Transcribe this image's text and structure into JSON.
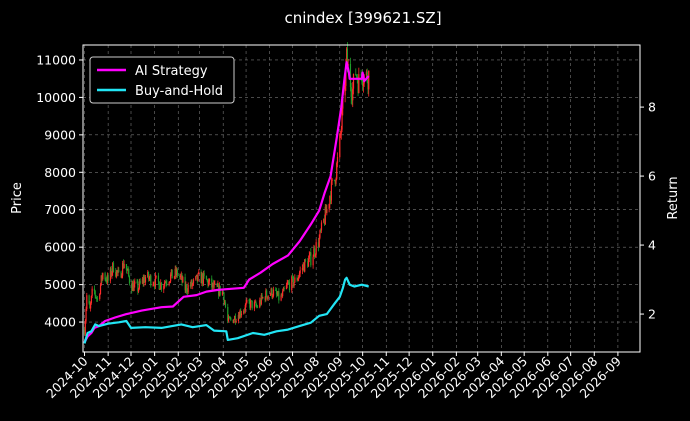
{
  "chart_data": {
    "type": "line",
    "title": "cnindex [399621.SZ]",
    "ylabel": "Price",
    "y2label": "Return",
    "ylim": [
      3200,
      11400
    ],
    "y2lim": [
      0.9,
      9.8
    ],
    "yticks": [
      4000,
      5000,
      6000,
      7000,
      8000,
      9000,
      10000,
      11000
    ],
    "y2ticks": [
      2,
      4,
      6,
      8
    ],
    "xlim": [
      "2024-09-29",
      "2026-09-30"
    ],
    "xticks": [
      "2024-10",
      "2024-11",
      "2024-12",
      "2025-01",
      "2025-02",
      "2025-03",
      "2025-04",
      "2025-05",
      "2025-06",
      "2025-07",
      "2025-08",
      "2025-09",
      "2025-10",
      "2025-11",
      "2025-12",
      "2026-01",
      "2026-02",
      "2026-03",
      "2026-04",
      "2026-05",
      "2026-06",
      "2026-07",
      "2026-08",
      "2026-09"
    ],
    "grid": true,
    "legend_position": "top-left",
    "colors": {
      "up": "#ff2a2a",
      "down": "#1f9e2a",
      "ai": "#ff00ff",
      "bh": "#22e5f5"
    },
    "price_close": [
      [
        "2024-10-01",
        3800
      ],
      [
        "2024-10-04",
        4700
      ],
      [
        "2024-10-08",
        4300
      ],
      [
        "2024-10-12",
        4900
      ],
      [
        "2024-10-18",
        4600
      ],
      [
        "2024-10-25",
        5300
      ],
      [
        "2024-11-01",
        5100
      ],
      [
        "2024-11-08",
        5500
      ],
      [
        "2024-11-15",
        5200
      ],
      [
        "2024-11-22",
        5600
      ],
      [
        "2024-12-01",
        5000
      ],
      [
        "2024-12-10",
        4900
      ],
      [
        "2024-12-20",
        5200
      ],
      [
        "2025-01-01",
        5100
      ],
      [
        "2025-01-10",
        5000
      ],
      [
        "2025-01-20",
        5200
      ],
      [
        "2025-02-01",
        5300
      ],
      [
        "2025-02-10",
        4900
      ],
      [
        "2025-02-20",
        5000
      ],
      [
        "2025-03-01",
        5200
      ],
      [
        "2025-03-10",
        5100
      ],
      [
        "2025-03-20",
        4900
      ],
      [
        "2025-04-01",
        4800
      ],
      [
        "2025-04-07",
        4000
      ],
      [
        "2025-04-15",
        4100
      ],
      [
        "2025-04-25",
        4300
      ],
      [
        "2025-05-05",
        4500
      ],
      [
        "2025-05-15",
        4400
      ],
      [
        "2025-05-25",
        4700
      ],
      [
        "2025-06-05",
        4800
      ],
      [
        "2025-06-15",
        4600
      ],
      [
        "2025-06-25",
        5000
      ],
      [
        "2025-07-05",
        5100
      ],
      [
        "2025-07-15",
        5500
      ],
      [
        "2025-07-25",
        5700
      ],
      [
        "2025-08-05",
        6200
      ],
      [
        "2025-08-10",
        6600
      ],
      [
        "2025-08-15",
        7000
      ],
      [
        "2025-08-20",
        7500
      ],
      [
        "2025-08-25",
        7800
      ],
      [
        "2025-08-30",
        8400
      ],
      [
        "2025-09-03",
        9200
      ],
      [
        "2025-09-06",
        10000
      ],
      [
        "2025-09-10",
        11000
      ],
      [
        "2025-09-14",
        10500
      ],
      [
        "2025-09-18",
        10200
      ],
      [
        "2025-09-22",
        10700
      ],
      [
        "2025-09-26",
        10400
      ],
      [
        "2025-09-30",
        10700
      ],
      [
        "2025-10-04",
        10500
      ],
      [
        "2025-10-09",
        10600
      ]
    ],
    "series": [
      {
        "name": "AI Strategy",
        "axis": "right",
        "points": [
          [
            "2024-10-01",
            1.18
          ],
          [
            "2024-10-05",
            1.35
          ],
          [
            "2024-10-10",
            1.45
          ],
          [
            "2024-10-14",
            1.6
          ],
          [
            "2024-10-20",
            1.65
          ],
          [
            "2024-10-28",
            1.8
          ],
          [
            "2024-11-10",
            1.9
          ],
          [
            "2024-11-25",
            2.0
          ],
          [
            "2024-12-15",
            2.1
          ],
          [
            "2025-01-10",
            2.2
          ],
          [
            "2025-01-25",
            2.22
          ],
          [
            "2025-02-08",
            2.5
          ],
          [
            "2025-02-25",
            2.55
          ],
          [
            "2025-03-10",
            2.65
          ],
          [
            "2025-03-25",
            2.7
          ],
          [
            "2025-04-05",
            2.72
          ],
          [
            "2025-04-28",
            2.76
          ],
          [
            "2025-05-05",
            3.0
          ],
          [
            "2025-05-20",
            3.2
          ],
          [
            "2025-06-05",
            3.45
          ],
          [
            "2025-06-25",
            3.7
          ],
          [
            "2025-07-10",
            4.1
          ],
          [
            "2025-07-25",
            4.6
          ],
          [
            "2025-08-05",
            5.0
          ],
          [
            "2025-08-12",
            5.5
          ],
          [
            "2025-08-20",
            6.0
          ],
          [
            "2025-08-28",
            7.1
          ],
          [
            "2025-09-03",
            8.0
          ],
          [
            "2025-09-07",
            8.8
          ],
          [
            "2025-09-10",
            9.3
          ],
          [
            "2025-09-13",
            9.0
          ],
          [
            "2025-09-14",
            8.82
          ],
          [
            "2025-09-30",
            8.82
          ],
          [
            "2025-10-01",
            9.0
          ],
          [
            "2025-10-03",
            8.75
          ],
          [
            "2025-10-09",
            8.9
          ]
        ]
      },
      {
        "name": "Buy-and-Hold",
        "axis": "right",
        "points": [
          [
            "2024-10-01",
            1.15
          ],
          [
            "2024-10-05",
            1.45
          ],
          [
            "2024-10-10",
            1.5
          ],
          [
            "2024-10-15",
            1.7
          ],
          [
            "2024-10-20",
            1.65
          ],
          [
            "2024-11-01",
            1.72
          ],
          [
            "2024-11-15",
            1.76
          ],
          [
            "2024-11-25",
            1.8
          ],
          [
            "2024-12-01",
            1.6
          ],
          [
            "2024-12-20",
            1.62
          ],
          [
            "2025-01-10",
            1.6
          ],
          [
            "2025-02-05",
            1.7
          ],
          [
            "2025-02-20",
            1.62
          ],
          [
            "2025-03-10",
            1.68
          ],
          [
            "2025-03-20",
            1.52
          ],
          [
            "2025-04-05",
            1.5
          ],
          [
            "2025-04-07",
            1.25
          ],
          [
            "2025-04-20",
            1.3
          ],
          [
            "2025-05-10",
            1.45
          ],
          [
            "2025-05-25",
            1.4
          ],
          [
            "2025-06-10",
            1.5
          ],
          [
            "2025-06-25",
            1.55
          ],
          [
            "2025-07-10",
            1.65
          ],
          [
            "2025-07-25",
            1.75
          ],
          [
            "2025-08-05",
            1.95
          ],
          [
            "2025-08-15",
            2.0
          ],
          [
            "2025-08-25",
            2.3
          ],
          [
            "2025-09-01",
            2.5
          ],
          [
            "2025-09-05",
            2.75
          ],
          [
            "2025-09-08",
            3.0
          ],
          [
            "2025-09-10",
            3.05
          ],
          [
            "2025-09-14",
            2.85
          ],
          [
            "2025-09-20",
            2.8
          ],
          [
            "2025-09-30",
            2.85
          ],
          [
            "2025-10-09",
            2.8
          ]
        ]
      }
    ]
  }
}
